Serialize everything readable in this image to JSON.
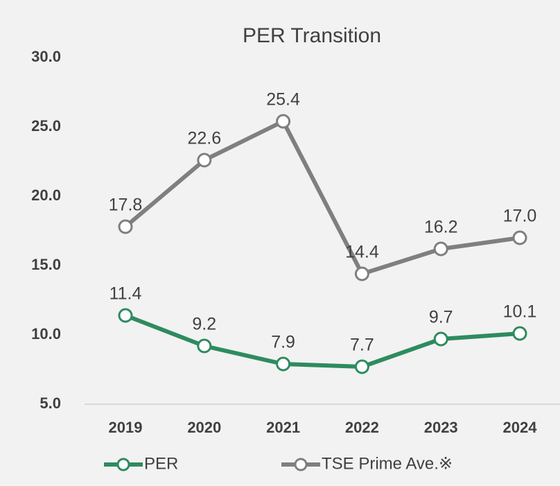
{
  "chart_data": {
    "type": "line",
    "title": "PER Transition",
    "categories": [
      "2019",
      "2020",
      "2021",
      "2022",
      "2023",
      "2024"
    ],
    "series": [
      {
        "name": "PER",
        "color": "#2e8b5f",
        "values": [
          11.4,
          9.2,
          7.9,
          7.7,
          9.7,
          10.1
        ],
        "value_labels": [
          "11.4",
          "9.2",
          "7.9",
          "7.7",
          "9.7",
          "10.1"
        ]
      },
      {
        "name": "TSE Prime Ave.※",
        "color": "#7f7f7f",
        "values": [
          17.8,
          22.6,
          25.4,
          14.4,
          16.2,
          17.0
        ],
        "value_labels": [
          "17.8",
          "22.6",
          "25.4",
          "14.4",
          "16.2",
          "17.0"
        ]
      }
    ],
    "ylim": [
      5,
      30
    ],
    "yticks": [
      {
        "value": 5,
        "label": "5.0"
      },
      {
        "value": 10,
        "label": "10.0"
      },
      {
        "value": 15,
        "label": "15.0"
      },
      {
        "value": 20,
        "label": "20.0"
      },
      {
        "value": 25,
        "label": "25.0"
      },
      {
        "value": 30,
        "label": "30.0"
      }
    ],
    "grid": false,
    "legend": "bottom"
  }
}
